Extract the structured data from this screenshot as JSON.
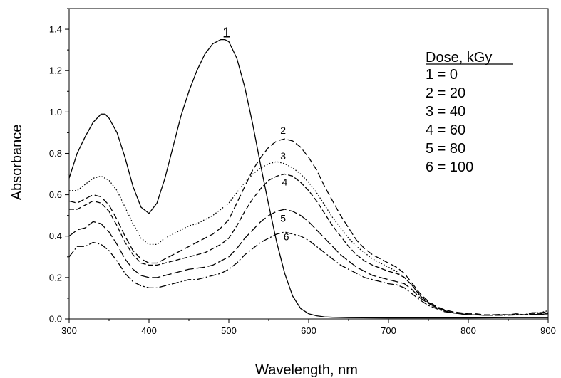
{
  "chart_data": {
    "type": "line",
    "xlabel": "Wavelength, nm",
    "ylabel": "Absorbance",
    "xlim": [
      300,
      900
    ],
    "ylim": [
      0.0,
      1.5
    ],
    "xticks": [
      "300",
      "400",
      "500",
      "600",
      "700",
      "800",
      "900"
    ],
    "yticks": [
      "0.0",
      "0.2",
      "0.4",
      "0.6",
      "0.8",
      "1.0",
      "1.2",
      "1.4"
    ],
    "grid": false,
    "legend": {
      "title": "Dose, kGy",
      "placement": "top-right",
      "entries": [
        "1 = 0",
        "2 = 20",
        "3 = 40",
        "4 = 60",
        "5 = 80",
        "6 = 100"
      ]
    },
    "series": [
      {
        "label": "1",
        "label_at": [
          497,
          1.36
        ],
        "color": "#000000",
        "x": [
          300,
          310,
          320,
          330,
          340,
          345,
          350,
          360,
          370,
          380,
          390,
          400,
          410,
          420,
          430,
          440,
          450,
          460,
          470,
          480,
          490,
          495,
          500,
          510,
          520,
          530,
          540,
          550,
          560,
          570,
          580,
          590,
          600,
          610,
          620,
          630,
          650,
          700,
          750,
          800,
          850,
          900
        ],
        "y": [
          0.68,
          0.8,
          0.88,
          0.95,
          0.99,
          0.99,
          0.97,
          0.9,
          0.78,
          0.64,
          0.54,
          0.51,
          0.56,
          0.68,
          0.83,
          0.98,
          1.1,
          1.2,
          1.28,
          1.33,
          1.35,
          1.35,
          1.34,
          1.26,
          1.12,
          0.94,
          0.74,
          0.55,
          0.37,
          0.22,
          0.11,
          0.05,
          0.025,
          0.015,
          0.01,
          0.008,
          0.006,
          0.005,
          0.005,
          0.005,
          0.006,
          0.006
        ]
      },
      {
        "label": "2",
        "label_at": [
          568,
          0.895
        ],
        "color": "#000000",
        "x": [
          300,
          310,
          320,
          330,
          340,
          350,
          360,
          370,
          380,
          390,
          400,
          410,
          420,
          430,
          440,
          450,
          460,
          470,
          480,
          490,
          500,
          510,
          520,
          530,
          540,
          550,
          560,
          570,
          580,
          590,
          600,
          610,
          620,
          630,
          640,
          650,
          660,
          670,
          680,
          690,
          700,
          710,
          720,
          730,
          740,
          750,
          760,
          770,
          780,
          790,
          800,
          810,
          820,
          830,
          840,
          850,
          860,
          870,
          880,
          890,
          900
        ],
        "y": [
          0.57,
          0.56,
          0.58,
          0.6,
          0.59,
          0.55,
          0.48,
          0.4,
          0.33,
          0.29,
          0.27,
          0.27,
          0.29,
          0.31,
          0.33,
          0.35,
          0.37,
          0.39,
          0.41,
          0.44,
          0.48,
          0.56,
          0.64,
          0.72,
          0.78,
          0.83,
          0.86,
          0.87,
          0.86,
          0.83,
          0.78,
          0.72,
          0.64,
          0.57,
          0.5,
          0.44,
          0.38,
          0.34,
          0.31,
          0.29,
          0.27,
          0.25,
          0.22,
          0.17,
          0.12,
          0.085,
          0.06,
          0.045,
          0.035,
          0.03,
          0.025,
          0.025,
          0.02,
          0.02,
          0.022,
          0.02,
          0.025,
          0.02,
          0.03,
          0.03,
          0.035
        ]
      },
      {
        "label": "3",
        "label_at": [
          568,
          0.77
        ],
        "color": "#000000",
        "x": [
          300,
          310,
          320,
          330,
          340,
          350,
          360,
          370,
          380,
          390,
          400,
          410,
          420,
          430,
          440,
          450,
          460,
          470,
          480,
          490,
          500,
          510,
          520,
          530,
          540,
          550,
          560,
          570,
          580,
          590,
          600,
          610,
          620,
          630,
          640,
          650,
          660,
          670,
          680,
          690,
          700,
          710,
          720,
          730,
          740,
          750,
          760,
          770,
          780,
          790,
          800,
          810,
          820,
          830,
          840,
          850,
          860,
          870,
          880,
          890,
          900
        ],
        "y": [
          0.62,
          0.62,
          0.65,
          0.68,
          0.69,
          0.67,
          0.62,
          0.54,
          0.46,
          0.39,
          0.36,
          0.36,
          0.39,
          0.41,
          0.43,
          0.45,
          0.46,
          0.48,
          0.5,
          0.53,
          0.56,
          0.61,
          0.66,
          0.7,
          0.73,
          0.75,
          0.76,
          0.75,
          0.73,
          0.7,
          0.66,
          0.61,
          0.55,
          0.49,
          0.44,
          0.39,
          0.35,
          0.32,
          0.29,
          0.27,
          0.25,
          0.23,
          0.2,
          0.16,
          0.11,
          0.08,
          0.055,
          0.04,
          0.03,
          0.025,
          0.02,
          0.02,
          0.018,
          0.02,
          0.02,
          0.02,
          0.025,
          0.02,
          0.03,
          0.03,
          0.04
        ]
      },
      {
        "label": "4",
        "label_at": [
          570,
          0.645
        ],
        "color": "#000000",
        "x": [
          300,
          310,
          320,
          330,
          340,
          350,
          360,
          370,
          380,
          390,
          400,
          410,
          420,
          430,
          440,
          450,
          460,
          470,
          480,
          490,
          500,
          510,
          520,
          530,
          540,
          550,
          560,
          570,
          580,
          590,
          600,
          610,
          620,
          630,
          640,
          650,
          660,
          670,
          680,
          690,
          700,
          710,
          720,
          730,
          740,
          750,
          760,
          770,
          780,
          790,
          800,
          810,
          820,
          830,
          840,
          850,
          860,
          870,
          880,
          890,
          900
        ],
        "y": [
          0.53,
          0.53,
          0.55,
          0.57,
          0.56,
          0.52,
          0.45,
          0.37,
          0.31,
          0.27,
          0.26,
          0.26,
          0.27,
          0.28,
          0.29,
          0.3,
          0.31,
          0.32,
          0.34,
          0.36,
          0.39,
          0.45,
          0.52,
          0.58,
          0.63,
          0.67,
          0.69,
          0.7,
          0.69,
          0.66,
          0.62,
          0.57,
          0.51,
          0.45,
          0.4,
          0.35,
          0.31,
          0.28,
          0.26,
          0.245,
          0.23,
          0.22,
          0.2,
          0.16,
          0.11,
          0.08,
          0.055,
          0.04,
          0.03,
          0.025,
          0.02,
          0.02,
          0.018,
          0.018,
          0.02,
          0.02,
          0.02,
          0.02,
          0.025,
          0.025,
          0.03
        ]
      },
      {
        "label": "5",
        "label_at": [
          568,
          0.47
        ],
        "color": "#000000",
        "x": [
          300,
          310,
          320,
          330,
          340,
          350,
          360,
          370,
          380,
          390,
          400,
          410,
          420,
          430,
          440,
          450,
          460,
          470,
          480,
          490,
          500,
          510,
          520,
          530,
          540,
          550,
          560,
          570,
          580,
          590,
          600,
          610,
          620,
          630,
          640,
          650,
          660,
          670,
          680,
          690,
          700,
          710,
          720,
          730,
          740,
          750,
          760,
          770,
          780,
          790,
          800,
          810,
          820,
          830,
          840,
          850,
          860,
          870,
          880,
          890,
          900
        ],
        "y": [
          0.4,
          0.43,
          0.44,
          0.47,
          0.46,
          0.42,
          0.36,
          0.29,
          0.24,
          0.21,
          0.2,
          0.2,
          0.21,
          0.22,
          0.23,
          0.24,
          0.245,
          0.25,
          0.26,
          0.28,
          0.3,
          0.34,
          0.39,
          0.43,
          0.47,
          0.5,
          0.52,
          0.53,
          0.52,
          0.5,
          0.47,
          0.43,
          0.39,
          0.35,
          0.31,
          0.28,
          0.25,
          0.23,
          0.21,
          0.2,
          0.19,
          0.18,
          0.17,
          0.14,
          0.1,
          0.075,
          0.055,
          0.04,
          0.03,
          0.025,
          0.02,
          0.02,
          0.018,
          0.018,
          0.018,
          0.02,
          0.02,
          0.02,
          0.022,
          0.022,
          0.025
        ]
      },
      {
        "label": "6",
        "label_at": [
          572,
          0.38
        ],
        "color": "#000000",
        "x": [
          300,
          310,
          320,
          330,
          340,
          350,
          360,
          370,
          380,
          390,
          400,
          410,
          420,
          430,
          440,
          450,
          460,
          470,
          480,
          490,
          500,
          510,
          520,
          530,
          540,
          550,
          560,
          570,
          580,
          590,
          600,
          610,
          620,
          630,
          640,
          650,
          660,
          670,
          680,
          690,
          700,
          710,
          720,
          730,
          740,
          750,
          760,
          770,
          780,
          790,
          800,
          810,
          820,
          830,
          840,
          850,
          860,
          870,
          880,
          890,
          900
        ],
        "y": [
          0.3,
          0.35,
          0.35,
          0.37,
          0.36,
          0.33,
          0.28,
          0.22,
          0.18,
          0.16,
          0.15,
          0.15,
          0.16,
          0.17,
          0.18,
          0.19,
          0.19,
          0.2,
          0.21,
          0.22,
          0.24,
          0.27,
          0.31,
          0.34,
          0.37,
          0.39,
          0.41,
          0.42,
          0.41,
          0.4,
          0.38,
          0.35,
          0.32,
          0.29,
          0.26,
          0.24,
          0.22,
          0.2,
          0.19,
          0.18,
          0.17,
          0.165,
          0.15,
          0.12,
          0.09,
          0.065,
          0.05,
          0.035,
          0.03,
          0.025,
          0.02,
          0.02,
          0.018,
          0.018,
          0.018,
          0.018,
          0.02,
          0.02,
          0.02,
          0.022,
          0.025
        ]
      }
    ]
  }
}
